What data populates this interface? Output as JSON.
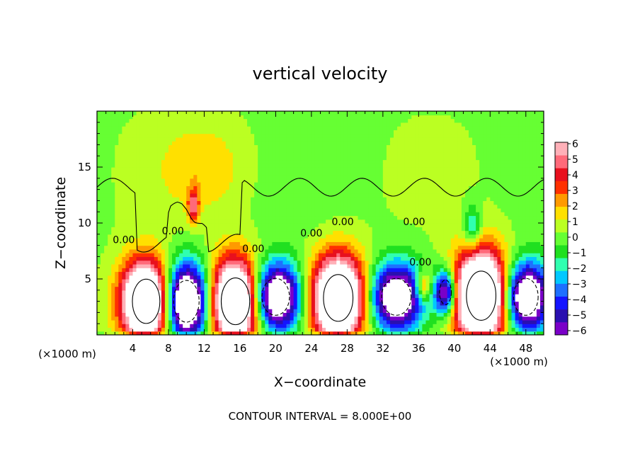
{
  "chart_data": {
    "type": "heatmap",
    "title": "vertical velocity",
    "xlabel": "X−coordinate",
    "ylabel": "Z−coordinate",
    "x_unit_left": "(×1000 m)",
    "x_unit_right": "(×1000 m)",
    "footer": "CONTOUR INTERVAL = 8.000E+00",
    "contour_label": "0.00",
    "xlim": [
      0,
      50
    ],
    "ylim": [
      0,
      20
    ],
    "x_ticks": [
      4,
      8,
      12,
      16,
      20,
      24,
      28,
      32,
      36,
      40,
      44,
      48
    ],
    "y_ticks": [
      5,
      10,
      15
    ],
    "colorbar": {
      "min": -6,
      "max": 6,
      "tick_labels": [
        "6",
        "5",
        "4",
        "3",
        "2",
        "1",
        "0",
        "−1",
        "−2",
        "−3",
        "−4",
        "−5",
        "−6"
      ],
      "colors": [
        "#7a00c8",
        "#2a10b0",
        "#1414ff",
        "#1e70ff",
        "#00c8ff",
        "#30ffb0",
        "#20e020",
        "#66ff33",
        "#bbff22",
        "#ffe000",
        "#ff9a00",
        "#ff3000",
        "#e8101e",
        "#ff6a7a",
        "#ffb0b8"
      ]
    },
    "features": [
      {
        "sign": "up",
        "x": 5.5,
        "z": 3.0,
        "rx": 2.8,
        "rz": 3.6,
        "peak": 12
      },
      {
        "sign": "down",
        "x": 10.0,
        "z": 3.0,
        "rx": 2.6,
        "rz": 3.4,
        "peak": -11
      },
      {
        "sign": "up",
        "x": 15.5,
        "z": 3.0,
        "rx": 2.9,
        "rz": 3.8,
        "peak": 12
      },
      {
        "sign": "down",
        "x": 20.0,
        "z": 3.4,
        "rx": 2.8,
        "rz": 3.0,
        "peak": -10
      },
      {
        "sign": "up",
        "x": 27.0,
        "z": 3.3,
        "rx": 3.0,
        "rz": 3.8,
        "peak": 12
      },
      {
        "sign": "down",
        "x": 33.5,
        "z": 3.4,
        "rx": 3.0,
        "rz": 3.0,
        "peak": -9
      },
      {
        "sign": "up",
        "x": 36.5,
        "z": 4.4,
        "rx": 0.9,
        "rz": 1.3,
        "peak": 4
      },
      {
        "sign": "down",
        "x": 39.0,
        "z": 3.8,
        "rx": 1.2,
        "rz": 2.0,
        "peak": -8
      },
      {
        "sign": "up",
        "x": 43.0,
        "z": 3.5,
        "rx": 3.0,
        "rz": 4.0,
        "peak": 13
      },
      {
        "sign": "down",
        "x": 48.0,
        "z": 3.4,
        "rx": 2.5,
        "rz": 3.0,
        "peak": -10
      },
      {
        "sign": "up",
        "x": 10.8,
        "z": 11.6,
        "rx": 0.6,
        "rz": 1.4,
        "peak": 4.5
      },
      {
        "sign": "up",
        "x": 12.0,
        "z": 15.0,
        "rx": 5.0,
        "rz": 4.0,
        "peak": 1.5
      },
      {
        "sign": "down",
        "x": 42.0,
        "z": 9.5,
        "rx": 1.0,
        "rz": 2.0,
        "peak": -3
      }
    ]
  }
}
